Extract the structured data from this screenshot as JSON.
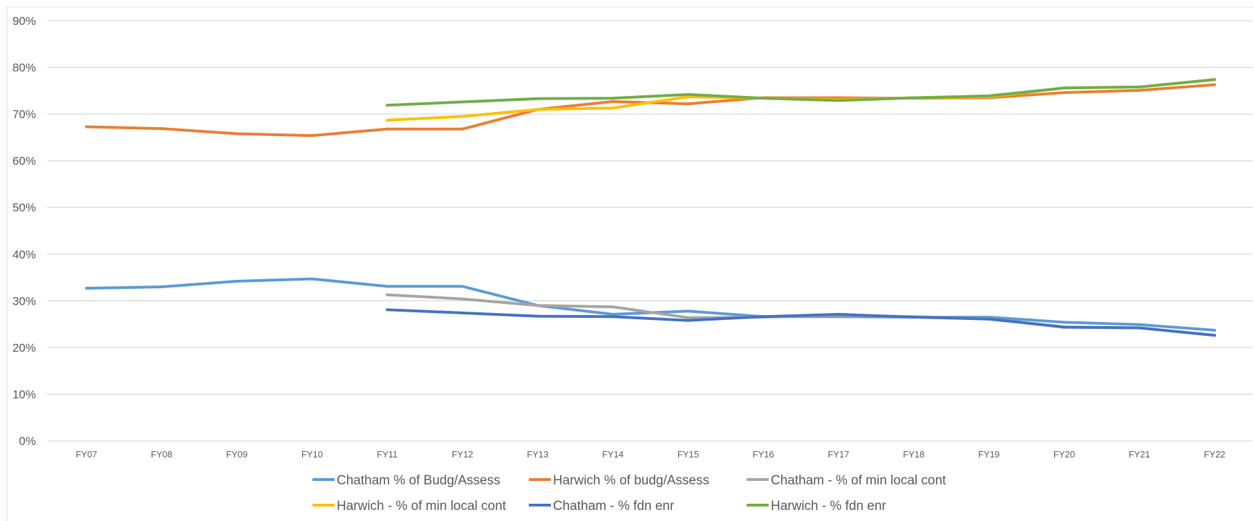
{
  "chart_data": {
    "type": "line",
    "title": "",
    "xlabel": "",
    "ylabel": "",
    "categories": [
      "FY07",
      "FY08",
      "FY09",
      "FY10",
      "FY11",
      "FY12",
      "FY13",
      "FY14",
      "FY15",
      "FY16",
      "FY17",
      "FY18",
      "FY19",
      "FY20",
      "FY21",
      "FY22"
    ],
    "ylim": [
      0,
      90
    ],
    "yticks": [
      0,
      10,
      20,
      30,
      40,
      50,
      60,
      70,
      80,
      90
    ],
    "ytick_labels": [
      "0%",
      "10%",
      "20%",
      "30%",
      "40%",
      "50%",
      "60%",
      "70%",
      "80%",
      "90%"
    ],
    "grid": true,
    "legend_position": "bottom",
    "series": [
      {
        "name": "Chatham % of Budg/Assess",
        "color": "#5b9bd5",
        "values": [
          32.7,
          33.0,
          34.2,
          34.7,
          33.1,
          33.1,
          29.0,
          27.1,
          27.8,
          26.6,
          26.6,
          26.5,
          26.5,
          25.4,
          24.9,
          23.7
        ]
      },
      {
        "name": "Harwich % of budg/Assess",
        "color": "#ed7d31",
        "values": [
          67.3,
          66.9,
          65.8,
          65.4,
          66.8,
          66.8,
          71.0,
          72.7,
          72.2,
          73.5,
          73.5,
          73.4,
          73.5,
          74.6,
          75.1,
          76.3
        ]
      },
      {
        "name": "Chatham - % of min local cont",
        "color": "#a5a5a5",
        "values": [
          null,
          null,
          null,
          null,
          31.3,
          30.4,
          29.0,
          28.7,
          26.4,
          26.5,
          26.9,
          26.6,
          26.2,
          24.3,
          24.2,
          22.6
        ]
      },
      {
        "name": "Harwich - % of min local cont",
        "color": "#ffc000",
        "values": [
          null,
          null,
          null,
          null,
          68.7,
          69.5,
          71.0,
          71.3,
          73.7,
          73.4,
          73.1,
          73.5,
          73.7,
          75.6,
          75.8,
          77.4
        ]
      },
      {
        "name": "Chatham - % fdn enr",
        "color": "#4472c4",
        "values": [
          null,
          null,
          null,
          null,
          28.1,
          27.4,
          26.7,
          26.6,
          25.8,
          26.6,
          27.1,
          26.5,
          26.1,
          24.4,
          24.2,
          22.6
        ]
      },
      {
        "name": "Harwich - % fdn enr",
        "color": "#70ad47",
        "values": [
          null,
          null,
          null,
          null,
          71.9,
          72.6,
          73.3,
          73.4,
          74.2,
          73.4,
          72.9,
          73.5,
          73.9,
          75.6,
          75.8,
          77.4
        ]
      }
    ]
  }
}
